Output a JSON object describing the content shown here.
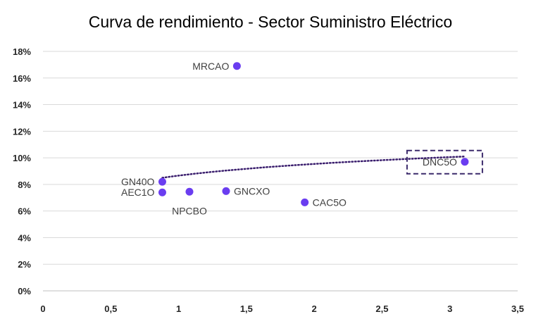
{
  "chart_data": {
    "type": "scatter",
    "title": "Curva de rendimiento - Sector Suministro Eléctrico",
    "xlabel": "",
    "ylabel": "",
    "xlim": [
      0,
      3.5
    ],
    "ylim": [
      0,
      18
    ],
    "x_ticks": [
      0,
      0.5,
      1,
      1.5,
      2,
      2.5,
      3,
      3.5
    ],
    "x_tick_labels": [
      "0",
      "0,5",
      "1",
      "1,5",
      "2",
      "2,5",
      "3",
      "3,5"
    ],
    "y_ticks": [
      0,
      2,
      4,
      6,
      8,
      10,
      12,
      14,
      16,
      18
    ],
    "y_tick_labels": [
      "0%",
      "2%",
      "4%",
      "6%",
      "8%",
      "10%",
      "12%",
      "14%",
      "16%",
      "18%"
    ],
    "grid": "horizontal",
    "legend": "none",
    "point_color": "#6a3df0",
    "trendline_color": "#3b1f6e",
    "highlight_box_color": "#3b2a6b",
    "points": [
      {
        "label": "MRCAO",
        "x": 1.43,
        "y": 16.9,
        "label_pos": "left"
      },
      {
        "label": "GN40O",
        "x": 0.88,
        "y": 8.2,
        "label_pos": "left"
      },
      {
        "label": "AEC1O",
        "x": 0.88,
        "y": 7.4,
        "label_pos": "left"
      },
      {
        "label": "NPCBO",
        "x": 1.08,
        "y": 7.45,
        "label_pos": "below"
      },
      {
        "label": "GNCXO",
        "x": 1.35,
        "y": 7.5,
        "label_pos": "right"
      },
      {
        "label": "CAC5O",
        "x": 1.93,
        "y": 6.65,
        "label_pos": "right"
      },
      {
        "label": "DNC5O",
        "x": 3.11,
        "y": 9.7,
        "label_pos": "left",
        "highlight": true
      }
    ],
    "trendline": {
      "type": "logarithmic",
      "x_start": 0.88,
      "x_end": 3.11,
      "y_start": 8.5,
      "y_end": 10.1
    }
  }
}
